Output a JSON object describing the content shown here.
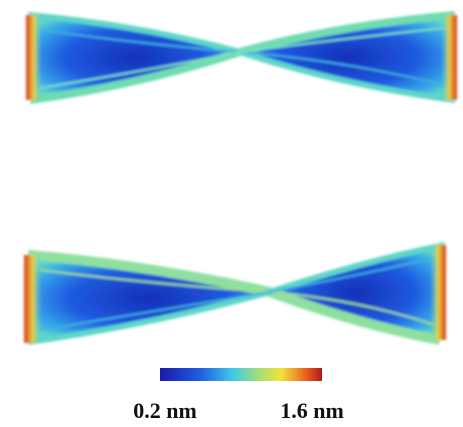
{
  "colorbar": {
    "min_label": "0.2 nm",
    "max_label": "1.6 nm"
  }
}
